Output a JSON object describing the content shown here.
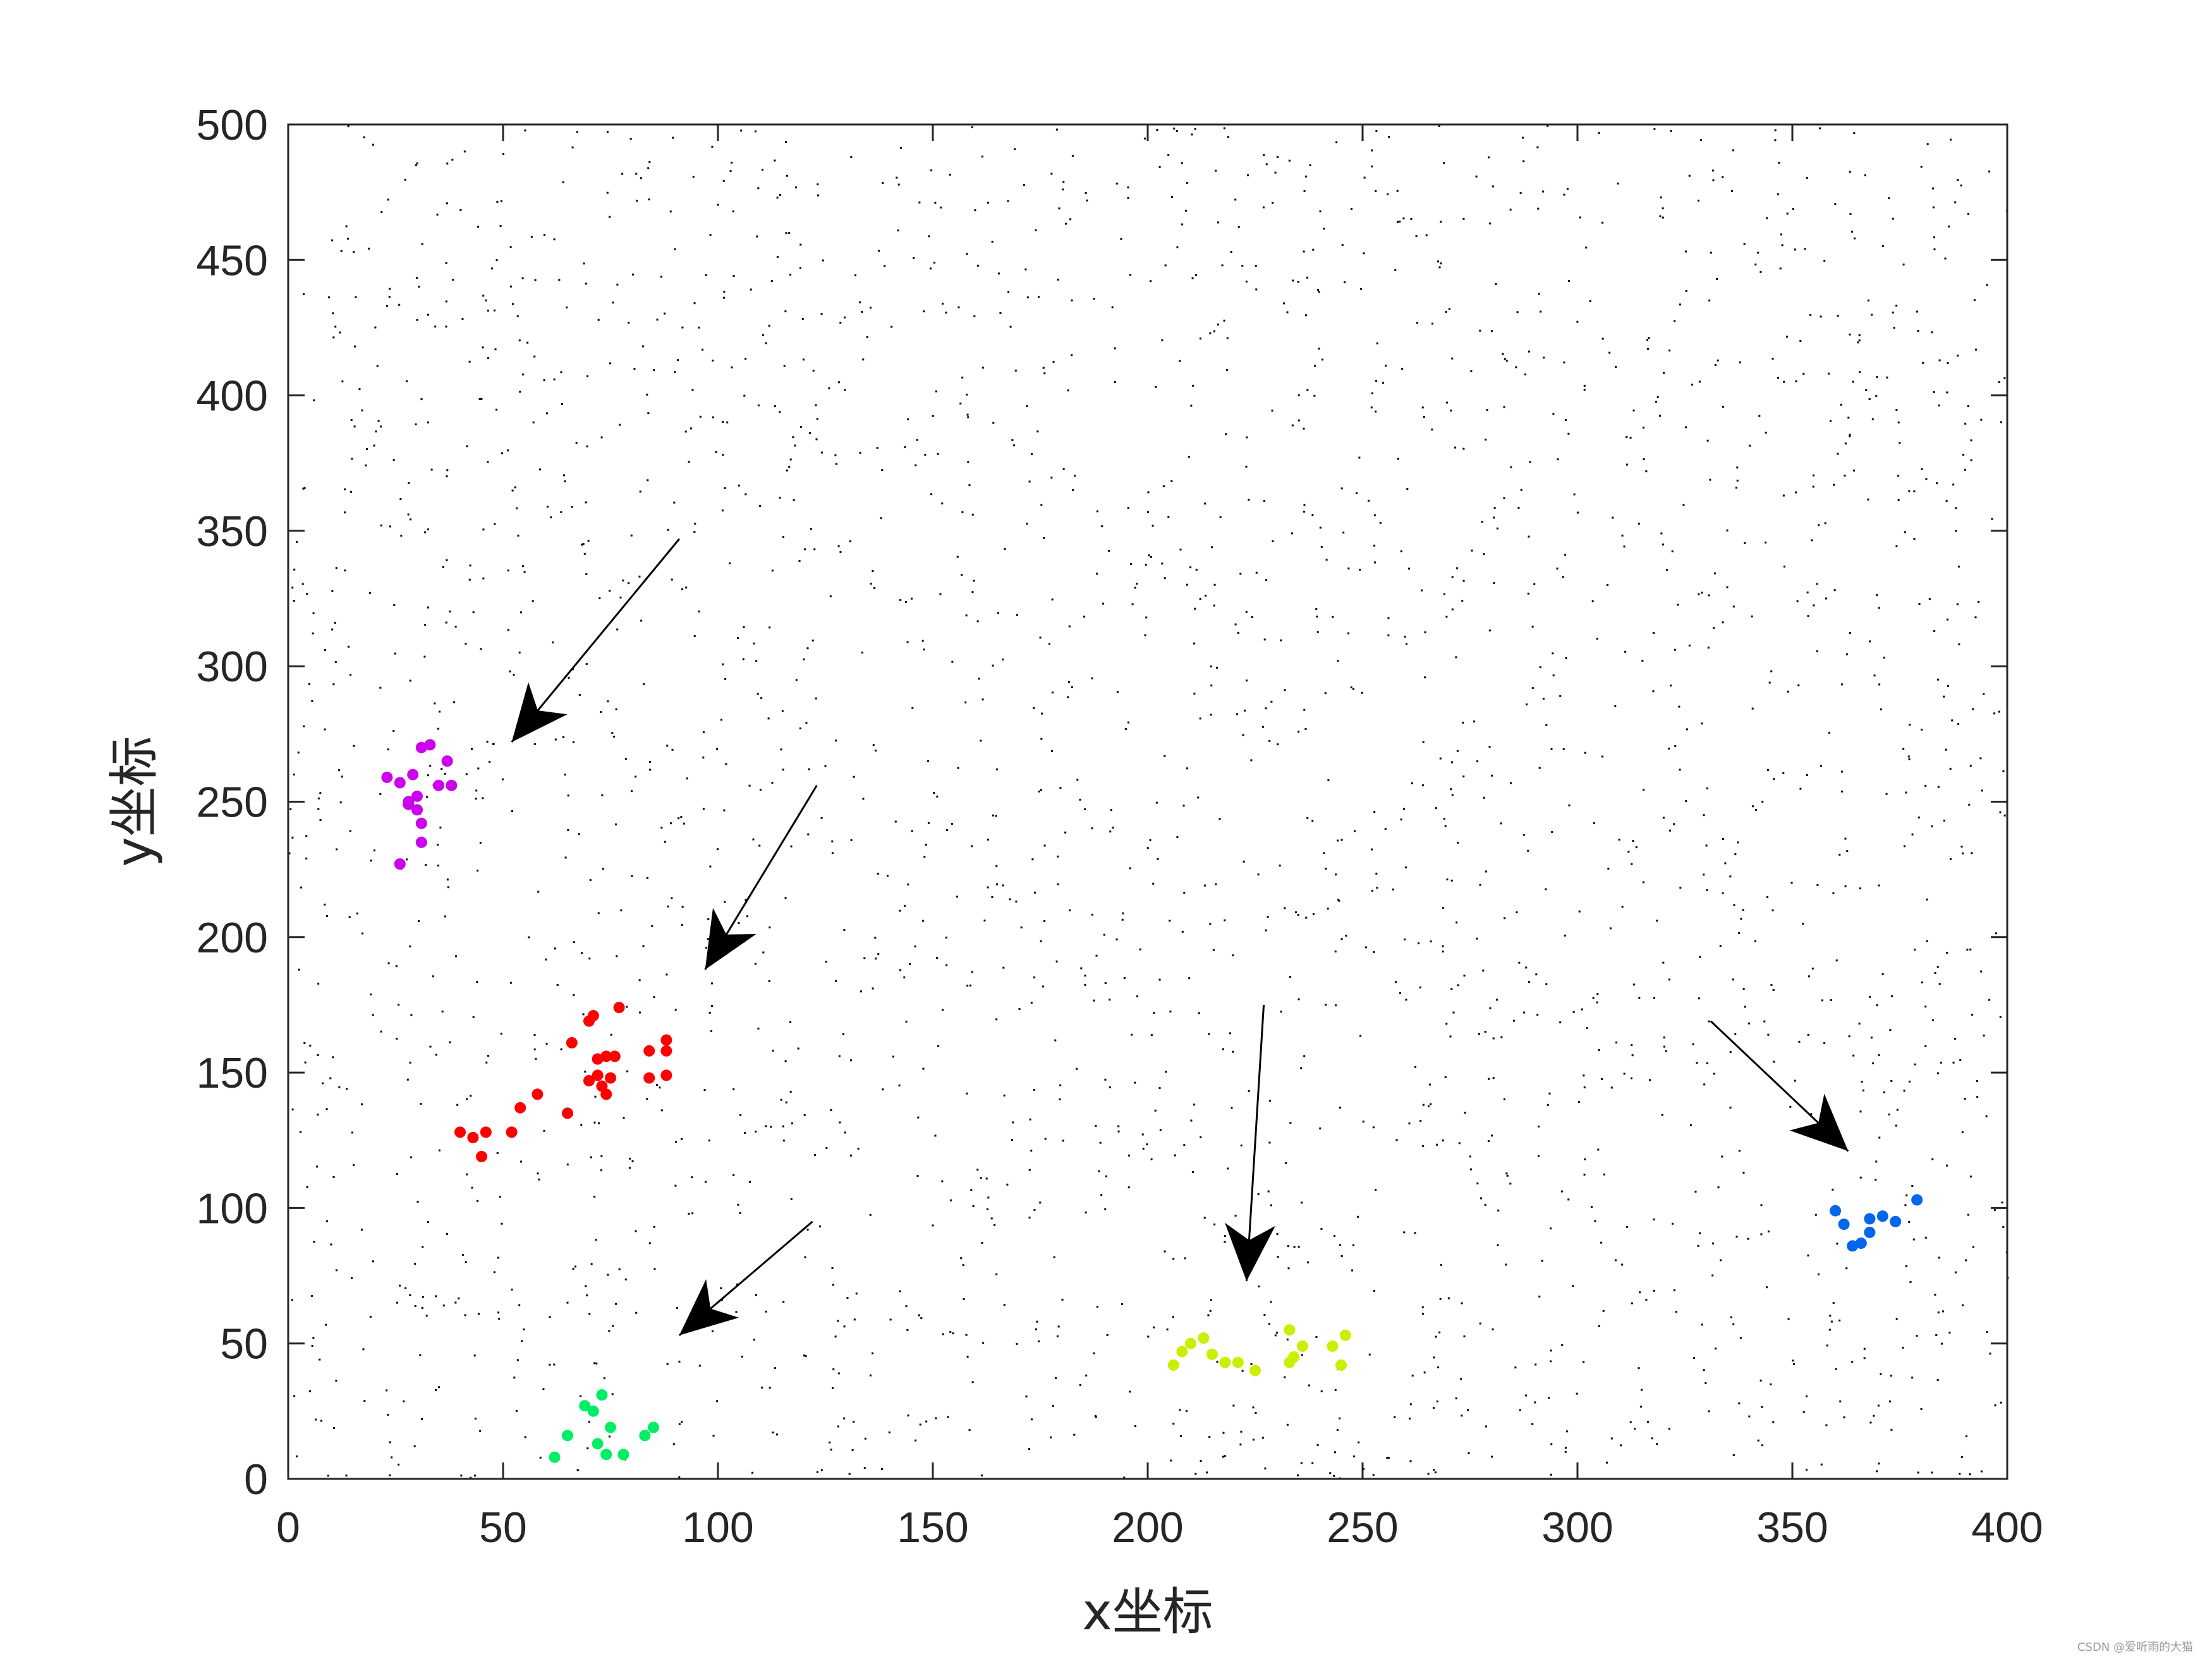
{
  "chart_data": {
    "type": "scatter",
    "xlabel": "x坐标",
    "ylabel": "y坐标",
    "xlim": [
      0,
      400
    ],
    "ylim": [
      0,
      500
    ],
    "xticks": [
      "0",
      "50",
      "100",
      "150",
      "200",
      "250",
      "300",
      "350",
      "400"
    ],
    "yticks": [
      "0",
      "50",
      "100",
      "150",
      "200",
      "250",
      "300",
      "350",
      "400",
      "450",
      "500"
    ],
    "grid": false,
    "background_points": {
      "description_color": "#000000",
      "marker": "tiny dot",
      "approximate_count": 2500,
      "distribution": "uniform over x 0-400, y 0-500"
    },
    "series": [
      {
        "color": "#cc00ee",
        "points": [
          [
            23,
            259
          ],
          [
            26,
            257
          ],
          [
            28,
            250
          ],
          [
            29,
            260
          ],
          [
            30,
            252
          ],
          [
            30,
            247
          ],
          [
            31,
            270
          ],
          [
            31,
            242
          ],
          [
            31,
            235
          ],
          [
            33,
            271
          ],
          [
            35,
            256
          ],
          [
            37,
            265
          ],
          [
            38,
            256
          ],
          [
            26,
            227
          ],
          [
            28,
            249
          ]
        ]
      },
      {
        "color": "#ff0000",
        "points": [
          [
            40,
            128
          ],
          [
            43,
            126
          ],
          [
            45,
            119
          ],
          [
            46,
            128
          ],
          [
            52,
            128
          ],
          [
            54,
            137
          ],
          [
            58,
            142
          ],
          [
            65,
            135
          ],
          [
            66,
            161
          ],
          [
            70,
            147
          ],
          [
            70,
            169
          ],
          [
            71,
            171
          ],
          [
            72,
            155
          ],
          [
            72,
            149
          ],
          [
            73,
            145
          ],
          [
            74,
            156
          ],
          [
            74,
            142
          ],
          [
            75,
            148
          ],
          [
            76,
            156
          ],
          [
            77,
            174
          ],
          [
            84,
            158
          ],
          [
            84,
            148
          ],
          [
            88,
            149
          ],
          [
            88,
            162
          ],
          [
            88,
            158
          ]
        ]
      },
      {
        "color": "#00ee66",
        "points": [
          [
            62,
            8
          ],
          [
            65,
            16
          ],
          [
            69,
            27
          ],
          [
            71,
            25
          ],
          [
            72,
            13
          ],
          [
            73,
            31
          ],
          [
            74,
            9
          ],
          [
            75,
            19
          ],
          [
            78,
            9
          ],
          [
            83,
            16
          ],
          [
            85,
            19
          ]
        ]
      },
      {
        "color": "#ccee00",
        "points": [
          [
            206,
            42
          ],
          [
            208,
            47
          ],
          [
            210,
            50
          ],
          [
            213,
            52
          ],
          [
            215,
            46
          ],
          [
            218,
            43
          ],
          [
            221,
            43
          ],
          [
            225,
            40
          ],
          [
            233,
            43
          ],
          [
            233,
            55
          ],
          [
            234,
            45
          ],
          [
            236,
            49
          ],
          [
            243,
            49
          ],
          [
            245,
            42
          ],
          [
            246,
            53
          ]
        ]
      },
      {
        "color": "#0066ee",
        "points": [
          [
            360,
            99
          ],
          [
            362,
            94
          ],
          [
            364,
            86
          ],
          [
            366,
            87
          ],
          [
            368,
            91
          ],
          [
            368,
            96
          ],
          [
            371,
            97
          ],
          [
            374,
            95
          ],
          [
            379,
            103
          ]
        ]
      }
    ],
    "annotations": [
      {
        "type": "arrow",
        "from": [
          91,
          347
        ],
        "to": [
          52,
          272
        ]
      },
      {
        "type": "arrow",
        "from": [
          123,
          256
        ],
        "to": [
          97,
          188
        ]
      },
      {
        "type": "arrow",
        "from": [
          122,
          95
        ],
        "to": [
          91,
          53
        ]
      },
      {
        "type": "arrow",
        "from": [
          227,
          175
        ],
        "to": [
          223,
          73
        ]
      },
      {
        "type": "arrow",
        "from": [
          331,
          169
        ],
        "to": [
          363,
          121
        ]
      }
    ]
  },
  "watermark": "CSDN @爱听雨的大猫"
}
